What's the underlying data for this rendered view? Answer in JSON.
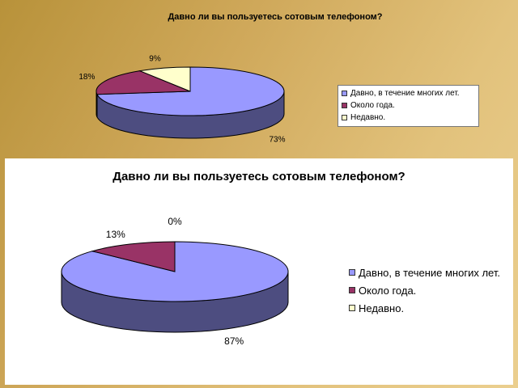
{
  "chart_data": [
    {
      "type": "pie",
      "title": "Давно ли вы пользуетесь сотовым телефоном?",
      "categories": [
        "Давно, в течение многих лет.",
        "Около года.",
        "Недавно."
      ],
      "values": [
        73,
        18,
        9
      ],
      "labels": [
        "73%",
        "18%",
        "9%"
      ],
      "colors": [
        "#9999ff",
        "#993366",
        "#ffffcc"
      ],
      "legend_position": "right"
    },
    {
      "type": "pie",
      "title": "Давно ли вы пользуетесь сотовым телефоном?",
      "categories": [
        "Давно, в течение многих лет.",
        "Около года.",
        "Недавно."
      ],
      "values": [
        87,
        13,
        0
      ],
      "labels": [
        "87%",
        "13%",
        "0%"
      ],
      "colors": [
        "#9999ff",
        "#993366",
        "#ffffcc"
      ],
      "legend_position": "right"
    }
  ]
}
